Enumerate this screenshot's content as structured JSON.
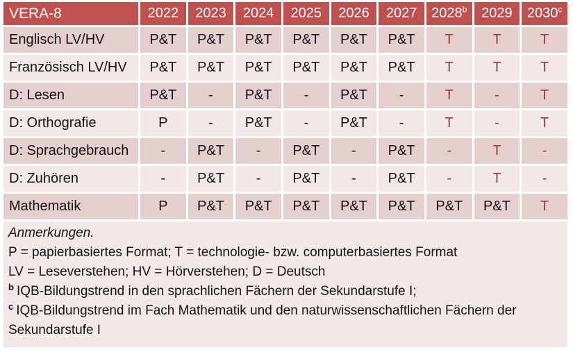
{
  "colors": {
    "header_bg": "#C0504D",
    "header_text": "#FFFFFF",
    "band_dark": "#E5CECE",
    "band_light": "#F2E8E7",
    "notes_bg": "#F2E8E7",
    "text_dark": "#141414",
    "text_red": "#9E3B39"
  },
  "table": {
    "title": "VERA-8",
    "columns": [
      {
        "year": "2022",
        "sup": ""
      },
      {
        "year": "2023",
        "sup": ""
      },
      {
        "year": "2024",
        "sup": ""
      },
      {
        "year": "2025",
        "sup": ""
      },
      {
        "year": "2026",
        "sup": ""
      },
      {
        "year": "2027",
        "sup": ""
      },
      {
        "year": "2028",
        "sup": "b"
      },
      {
        "year": "2029",
        "sup": ""
      },
      {
        "year": "2030",
        "sup": "c"
      }
    ],
    "rows": [
      {
        "label": "Englisch LV/HV",
        "cells": [
          {
            "v": "P&T",
            "red": false
          },
          {
            "v": "P&T",
            "red": false
          },
          {
            "v": "P&T",
            "red": false
          },
          {
            "v": "P&T",
            "red": false
          },
          {
            "v": "P&T",
            "red": false
          },
          {
            "v": "P&T",
            "red": false
          },
          {
            "v": "T",
            "red": true
          },
          {
            "v": "T",
            "red": true
          },
          {
            "v": "T",
            "red": true
          }
        ]
      },
      {
        "label": "Französisch LV/HV",
        "cells": [
          {
            "v": "P&T",
            "red": false
          },
          {
            "v": "P&T",
            "red": false
          },
          {
            "v": "P&T",
            "red": false
          },
          {
            "v": "P&T",
            "red": false
          },
          {
            "v": "P&T",
            "red": false
          },
          {
            "v": "P&T",
            "red": false
          },
          {
            "v": "T",
            "red": true
          },
          {
            "v": "T",
            "red": true
          },
          {
            "v": "T",
            "red": true
          }
        ]
      },
      {
        "label": "D: Lesen",
        "cells": [
          {
            "v": "P&T",
            "red": false
          },
          {
            "v": "-",
            "red": false
          },
          {
            "v": "P&T",
            "red": false
          },
          {
            "v": "-",
            "red": false
          },
          {
            "v": "P&T",
            "red": false
          },
          {
            "v": "-",
            "red": false
          },
          {
            "v": "T",
            "red": true
          },
          {
            "v": "-",
            "red": true
          },
          {
            "v": "T",
            "red": true
          }
        ]
      },
      {
        "label": "D: Orthografie",
        "cells": [
          {
            "v": "P",
            "red": false
          },
          {
            "v": "-",
            "red": false
          },
          {
            "v": "P&T",
            "red": false
          },
          {
            "v": "-",
            "red": false
          },
          {
            "v": "P&T",
            "red": false
          },
          {
            "v": "-",
            "red": false
          },
          {
            "v": "T",
            "red": true
          },
          {
            "v": "-",
            "red": true
          },
          {
            "v": "T",
            "red": true
          }
        ]
      },
      {
        "label": "D: Sprachgebrauch",
        "cells": [
          {
            "v": "-",
            "red": false
          },
          {
            "v": "P&T",
            "red": false
          },
          {
            "v": "-",
            "red": false
          },
          {
            "v": "P&T",
            "red": false
          },
          {
            "v": "-",
            "red": false
          },
          {
            "v": "P&T",
            "red": false
          },
          {
            "v": "-",
            "red": true
          },
          {
            "v": "T",
            "red": true
          },
          {
            "v": "-",
            "red": true
          }
        ]
      },
      {
        "label": "D: Zuhören",
        "cells": [
          {
            "v": "-",
            "red": false
          },
          {
            "v": "P&T",
            "red": false
          },
          {
            "v": "-",
            "red": false
          },
          {
            "v": "P&T",
            "red": false
          },
          {
            "v": "-",
            "red": false
          },
          {
            "v": "P&T",
            "red": false
          },
          {
            "v": "-",
            "red": true
          },
          {
            "v": "T",
            "red": true
          },
          {
            "v": "-",
            "red": true
          }
        ]
      },
      {
        "label": "Mathematik",
        "cells": [
          {
            "v": "P",
            "red": false
          },
          {
            "v": "P&T",
            "red": false
          },
          {
            "v": "P&T",
            "red": false
          },
          {
            "v": "P&T",
            "red": false
          },
          {
            "v": "P&T",
            "red": false
          },
          {
            "v": "P&T",
            "red": false
          },
          {
            "v": "P&T",
            "red": false
          },
          {
            "v": "P&T",
            "red": false
          },
          {
            "v": "T",
            "red": true
          }
        ]
      }
    ]
  },
  "notes": {
    "title": "Anmerkungen.",
    "formats": "P = papierbasiertes Format; T = technologie- bzw. computerbasiertes Format",
    "abbreviations": "LV = Leseverstehen; HV = Hörverstehen; D = Deutsch",
    "note_b_sup": "b",
    "note_b": "IQB-Bildungstrend in den sprachlichen Fächern der Sekundarstufe I;",
    "note_c_sup": "c",
    "note_c": "IQB-Bildungstrend im Fach Mathematik und den naturwissenschaftlichen Fächern der Sekundarstufe I"
  }
}
